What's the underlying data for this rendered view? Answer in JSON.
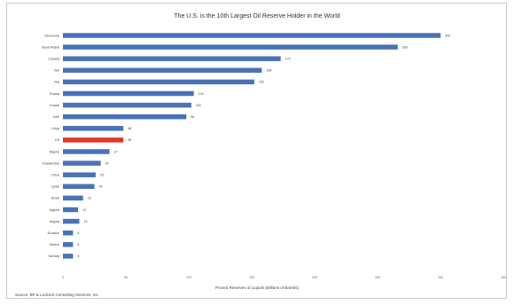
{
  "chart_data": {
    "type": "bar",
    "orientation": "horizontal",
    "title": "The U.S. is the 10th Largest Oil Reserve Holder in the World",
    "xlabel": "Proved Reserves of Liquids (Billions of Barrels)",
    "ylabel": "",
    "xlim": [
      0,
      350
    ],
    "xticks": [
      "0",
      "50",
      "100",
      "150",
      "200",
      "250",
      "300",
      "350"
    ],
    "categories": [
      "Venezuela",
      "Saudi Arabia",
      "Canada",
      "Iran",
      "Iraq",
      "Russia",
      "Kuwait",
      "UAE",
      "Libya",
      "US",
      "Nigeria",
      "Kazakhstan",
      "China",
      "Qatar",
      "Brazil",
      "Algeria",
      "Angola",
      "Ecuador",
      "Mexico",
      "Norway"
    ],
    "values": [
      300,
      266,
      173,
      158,
      152,
      104,
      102,
      98,
      48,
      48,
      37,
      30,
      26,
      25,
      16,
      12,
      13,
      8,
      8,
      8
    ],
    "value_labels": [
      "300",
      "266",
      "173",
      "158",
      "152",
      "104",
      "102",
      "98",
      "48",
      "48",
      "37",
      "30",
      "26",
      "25",
      "16",
      "12",
      "13",
      "8",
      "8",
      "8"
    ],
    "bar_color": "#4a72b8",
    "highlight_color": "#e0372b",
    "highlight_category": "US",
    "grid": false,
    "legend": "none"
  },
  "source": "Source: BP & Ledcent Consulting Services, Inc."
}
